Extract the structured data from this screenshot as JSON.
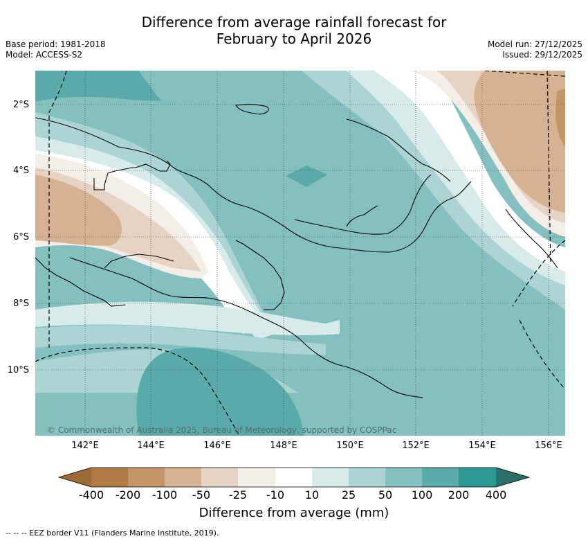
{
  "title_line1": "Difference from average rainfall forecast for",
  "title_line2": "February to April 2026",
  "meta": {
    "base_period": "Base period: 1981-2018",
    "model": "Model: ACCESS-S2",
    "model_run": "Model run: 27/12/2025",
    "issued": "Issued: 29/12/2025"
  },
  "copyright": "© Commonwealth of Australia 2025, Bureau of Meteorology, supported by COSPPac",
  "lat_labels": [
    "2°S",
    "4°S",
    "6°S",
    "8°S",
    "10°S"
  ],
  "lon_labels": [
    "142°E",
    "144°E",
    "146°E",
    "148°E",
    "150°E",
    "152°E",
    "154°E",
    "156°E"
  ],
  "colorbar": {
    "ticks": [
      "-400",
      "-200",
      "-100",
      "-50",
      "-25",
      "-10",
      "10",
      "25",
      "50",
      "100",
      "200",
      "400"
    ],
    "colors": [
      "#9c6a34",
      "#b07a44",
      "#c49566",
      "#d5b292",
      "#e7d3c3",
      "#f3eee8",
      "#ffffff",
      "#d6ebea",
      "#acd4d3",
      "#84c0bf",
      "#5aaaa9",
      "#2e9893",
      "#2b6f6b"
    ],
    "title": "Difference from average (mm)"
  },
  "eez_note": "-- -- -- EEZ border V11 (Flanders Marine Institute, 2019)."
}
